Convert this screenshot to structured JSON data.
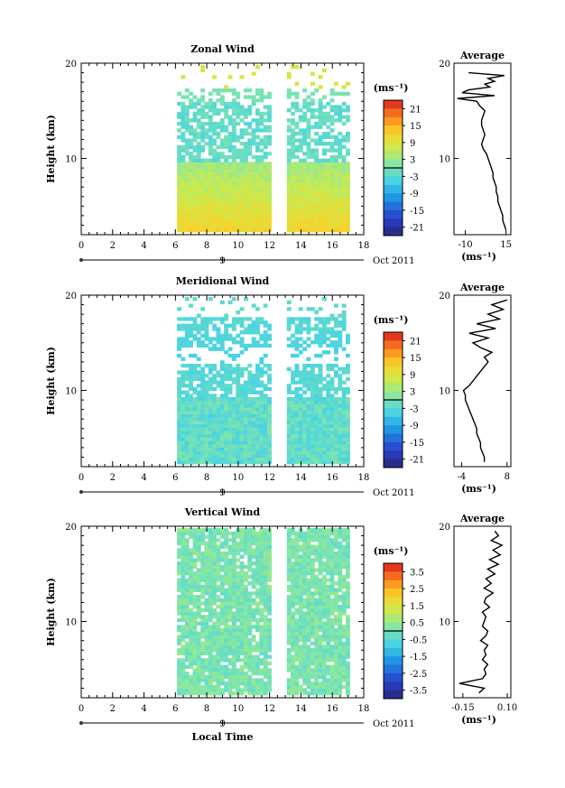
{
  "chart_data": [
    {
      "type": "heatmap",
      "title": "Zonal Wind",
      "ylabel": "Height (km)",
      "xlim": [
        0,
        18
      ],
      "ylim": [
        2,
        20
      ],
      "x_ticks": [
        "0",
        "2",
        "4",
        "6",
        "8",
        "10",
        "12",
        "14",
        "16",
        "18"
      ],
      "y_ticks": [
        "10",
        "20"
      ],
      "date_label": "9",
      "month_label": "Oct 2011",
      "colorbar": {
        "unit": "(ms⁻¹)",
        "labels": [
          "21",
          "15",
          "9",
          "3",
          "-3",
          "-9",
          "-15",
          "-21"
        ],
        "range": [
          -24,
          24
        ]
      },
      "data_coverage": {
        "start_hour": 6.1,
        "gap": [
          12.1,
          13.1
        ],
        "end_hour": 17
      },
      "average_profile": {
        "title": "Average",
        "xlabel": "(ms⁻¹)",
        "x_ticks": [
          "-10",
          "15"
        ],
        "xlim": [
          -17,
          18
        ],
        "y_ticks": [
          "10",
          "20"
        ],
        "height_km": [
          2.5,
          3,
          3.5,
          4,
          4.5,
          5,
          5.5,
          6,
          6.5,
          7,
          7.5,
          8,
          8.5,
          9,
          9.5,
          10,
          10.5,
          11,
          11.5,
          12,
          12.5,
          13,
          13.5,
          14,
          14.5,
          15,
          15.5,
          16,
          16.3,
          16.6,
          16.9,
          17.2,
          17.5,
          17.8,
          18.1,
          18.4,
          18.7,
          19
        ],
        "value": [
          15,
          14,
          13,
          13,
          12,
          11,
          10,
          10,
          9,
          9,
          8,
          7,
          7,
          6,
          5,
          4,
          3,
          1,
          0,
          1,
          2,
          1,
          0,
          0,
          1,
          2,
          -1,
          -3,
          -15,
          8,
          -12,
          -8,
          5,
          2,
          8,
          4,
          14,
          -8
        ]
      }
    },
    {
      "type": "heatmap",
      "title": "Meridional Wind",
      "ylabel": "Height (km)",
      "xlim": [
        0,
        18
      ],
      "ylim": [
        2,
        20
      ],
      "x_ticks": [
        "0",
        "2",
        "4",
        "6",
        "8",
        "10",
        "12",
        "14",
        "16",
        "18"
      ],
      "y_ticks": [
        "10",
        "20"
      ],
      "date_label": "9",
      "month_label": "Oct 2011",
      "colorbar": {
        "unit": "(ms⁻¹)",
        "labels": [
          "21",
          "15",
          "9",
          "3",
          "-3",
          "-9",
          "-15",
          "-21"
        ],
        "range": [
          -24,
          24
        ]
      },
      "data_coverage": {
        "start_hour": 6.1,
        "gap": [
          12.1,
          13.1
        ],
        "end_hour": 17
      },
      "average_profile": {
        "title": "Average",
        "xlabel": "(ms⁻¹)",
        "x_ticks": [
          "-4",
          "8"
        ],
        "xlim": [
          -6,
          9
        ],
        "y_ticks": [
          "10",
          "20"
        ],
        "height_km": [
          2.5,
          3,
          3.5,
          4,
          4.5,
          5,
          5.5,
          6,
          6.5,
          7,
          7.5,
          8,
          8.5,
          9,
          9.5,
          10,
          10.5,
          11,
          11.5,
          12,
          12.5,
          13,
          13.5,
          14,
          14.5,
          15,
          15.5,
          16,
          16.5,
          17,
          17.5,
          18,
          18.5,
          19,
          19.5
        ],
        "value": [
          2,
          2,
          1.5,
          1,
          1,
          0.5,
          0,
          0,
          -0.5,
          -1,
          -1.5,
          -2,
          -2.5,
          -3,
          -3,
          -3.5,
          -2,
          -1,
          0,
          1,
          2,
          3,
          2,
          4,
          1,
          -1,
          3,
          -2,
          5,
          0,
          6,
          3,
          7,
          4,
          8
        ]
      }
    },
    {
      "type": "heatmap",
      "title": "Vertical Wind",
      "ylabel": "Height (km)",
      "xlabel": "Local Time",
      "xlim": [
        0,
        18
      ],
      "ylim": [
        2,
        20
      ],
      "x_ticks": [
        "0",
        "2",
        "4",
        "6",
        "8",
        "10",
        "12",
        "14",
        "16",
        "18"
      ],
      "y_ticks": [
        "10",
        "20"
      ],
      "date_label": "9",
      "month_label": "Oct 2011",
      "colorbar": {
        "unit": "(ms⁻¹)",
        "labels": [
          "3.5",
          "2.5",
          "1.5",
          "0.5",
          "-0.5",
          "-1.5",
          "-2.5",
          "-3.5"
        ],
        "range": [
          -4,
          4
        ]
      },
      "data_coverage": {
        "start_hour": 6.1,
        "gap": [
          12.1,
          13.1
        ],
        "end_hour": 17
      },
      "average_profile": {
        "title": "Average",
        "xlabel": "(ms⁻¹)",
        "x_ticks": [
          "-0.15",
          "0.10"
        ],
        "xlim": [
          -0.2,
          0.12
        ],
        "y_ticks": [
          "10",
          "20"
        ],
        "height_km": [
          2.5,
          3,
          3.5,
          4,
          4.5,
          5,
          5.5,
          6,
          6.5,
          7,
          7.5,
          8,
          8.5,
          9,
          9.5,
          10,
          10.5,
          11,
          11.5,
          12,
          12.5,
          13,
          13.5,
          14,
          14.5,
          15,
          15.5,
          16,
          16.5,
          17,
          17.5,
          18,
          18.5,
          19,
          19.5
        ],
        "value": [
          -0.06,
          -0.03,
          -0.17,
          -0.04,
          -0.02,
          -0.03,
          -0.01,
          -0.04,
          -0.02,
          -0.03,
          -0.01,
          -0.05,
          -0.02,
          -0.01,
          -0.04,
          -0.03,
          -0.02,
          -0.04,
          0.0,
          -0.03,
          -0.02,
          0.02,
          -0.03,
          0.01,
          -0.02,
          0.03,
          -0.01,
          0.05,
          0.0,
          0.06,
          0.02,
          0.07,
          0.01,
          0.05,
          0.03
        ]
      }
    }
  ]
}
